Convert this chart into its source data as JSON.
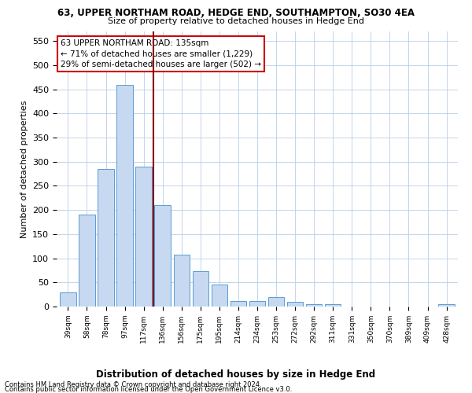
{
  "title1": "63, UPPER NORTHAM ROAD, HEDGE END, SOUTHAMPTON, SO30 4EA",
  "title2": "Size of property relative to detached houses in Hedge End",
  "xlabel": "Distribution of detached houses by size in Hedge End",
  "ylabel": "Number of detached properties",
  "categories": [
    "39sqm",
    "58sqm",
    "78sqm",
    "97sqm",
    "117sqm",
    "136sqm",
    "156sqm",
    "175sqm",
    "195sqm",
    "214sqm",
    "234sqm",
    "253sqm",
    "272sqm",
    "292sqm",
    "311sqm",
    "331sqm",
    "350sqm",
    "370sqm",
    "389sqm",
    "409sqm",
    "428sqm"
  ],
  "values": [
    30,
    190,
    285,
    460,
    290,
    210,
    108,
    73,
    45,
    12,
    12,
    20,
    10,
    5,
    5,
    0,
    0,
    0,
    0,
    0,
    5
  ],
  "bar_color": "#c6d9f0",
  "bar_edge_color": "#5b9bd5",
  "vline_index": 4,
  "vline_color": "#8b0000",
  "annotation_text": "63 UPPER NORTHAM ROAD: 135sqm\n← 71% of detached houses are smaller (1,229)\n29% of semi-detached houses are larger (502) →",
  "annotation_box_color": "#ffffff",
  "annotation_box_edge_color": "#cc0000",
  "ylim": [
    0,
    570
  ],
  "yticks": [
    0,
    50,
    100,
    150,
    200,
    250,
    300,
    350,
    400,
    450,
    500,
    550
  ],
  "footer1": "Contains HM Land Registry data © Crown copyright and database right 2024.",
  "footer2": "Contains public sector information licensed under the Open Government Licence v3.0.",
  "bg_color": "#ffffff",
  "grid_color": "#b8cfe8"
}
